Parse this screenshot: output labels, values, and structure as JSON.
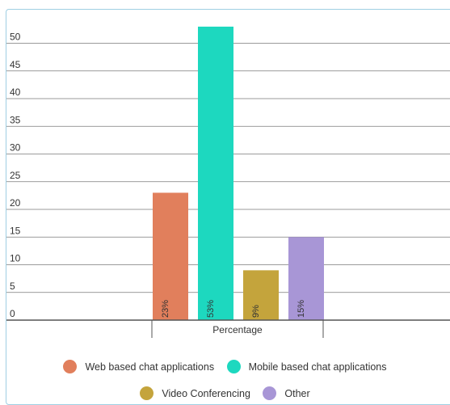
{
  "colors": {
    "web": "#e17f5c",
    "mobile": "#1dd8bf",
    "video": "#c4a43c",
    "other": "#a896d6",
    "grid": "#7a7a7a",
    "border": "#9fcfe3"
  },
  "chart_data": {
    "type": "bar",
    "categories": [
      "Percentage"
    ],
    "xlabel": "Percentage",
    "ylabel": "",
    "ylim": [
      0,
      55
    ],
    "yticks": [
      0,
      5,
      10,
      15,
      20,
      25,
      30,
      35,
      40,
      45,
      50
    ],
    "grid": true,
    "legend_position": "bottom",
    "series": [
      {
        "name": "Web based chat applications",
        "values": [
          23
        ],
        "label": "23%",
        "color": "#e17f5c"
      },
      {
        "name": "Mobile based chat applications",
        "values": [
          53
        ],
        "label": "53%",
        "color": "#1dd8bf"
      },
      {
        "name": "Video Conferencing",
        "values": [
          9
        ],
        "label": "9%",
        "color": "#c4a43c"
      },
      {
        "name": "Other",
        "values": [
          15
        ],
        "label": "15%",
        "color": "#a896d6"
      }
    ]
  },
  "legend": {
    "items": [
      {
        "label": "Web based chat applications",
        "color": "#e17f5c"
      },
      {
        "label": "Mobile based chat applications",
        "color": "#1dd8bf"
      },
      {
        "label": "Video Conferencing",
        "color": "#c4a43c"
      },
      {
        "label": "Other",
        "color": "#a896d6"
      }
    ]
  }
}
